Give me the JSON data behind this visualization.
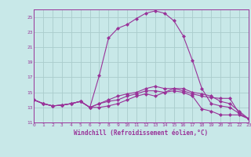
{
  "xlabel": "Windchill (Refroidissement éolien,°C)",
  "bg_color": "#c8e8e8",
  "grid_color": "#aacccc",
  "line_color": "#993399",
  "xlim": [
    0,
    23
  ],
  "ylim": [
    11,
    26
  ],
  "xticks": [
    0,
    1,
    2,
    3,
    4,
    5,
    6,
    7,
    8,
    9,
    10,
    11,
    12,
    13,
    14,
    15,
    16,
    17,
    18,
    19,
    20,
    21,
    22,
    23
  ],
  "yticks": [
    11,
    13,
    15,
    17,
    19,
    21,
    23,
    25
  ],
  "series": [
    [
      14.0,
      13.5,
      13.2,
      13.3,
      13.5,
      13.8,
      13.0,
      13.0,
      13.2,
      13.5,
      14.0,
      14.5,
      14.8,
      14.5,
      15.0,
      15.5,
      15.2,
      14.8,
      14.5,
      14.3,
      14.2,
      14.2,
      12.2,
      11.5
    ],
    [
      14.0,
      13.5,
      13.2,
      13.3,
      13.5,
      13.8,
      13.0,
      17.2,
      22.2,
      23.5,
      24.0,
      24.8,
      25.5,
      25.8,
      25.5,
      24.5,
      22.5,
      19.2,
      15.5,
      13.5,
      13.2,
      13.0,
      12.2,
      11.5
    ],
    [
      14.0,
      13.5,
      13.2,
      13.3,
      13.5,
      13.8,
      13.0,
      13.5,
      14.0,
      14.5,
      14.8,
      15.0,
      15.5,
      15.8,
      15.5,
      15.5,
      15.5,
      15.0,
      14.8,
      14.5,
      13.8,
      13.5,
      12.5,
      11.5
    ],
    [
      14.0,
      13.5,
      13.2,
      13.3,
      13.5,
      13.8,
      13.0,
      13.5,
      13.8,
      14.0,
      14.5,
      14.8,
      15.2,
      15.2,
      15.0,
      15.2,
      15.0,
      14.5,
      12.8,
      12.5,
      12.0,
      12.0,
      12.0,
      11.5
    ]
  ]
}
